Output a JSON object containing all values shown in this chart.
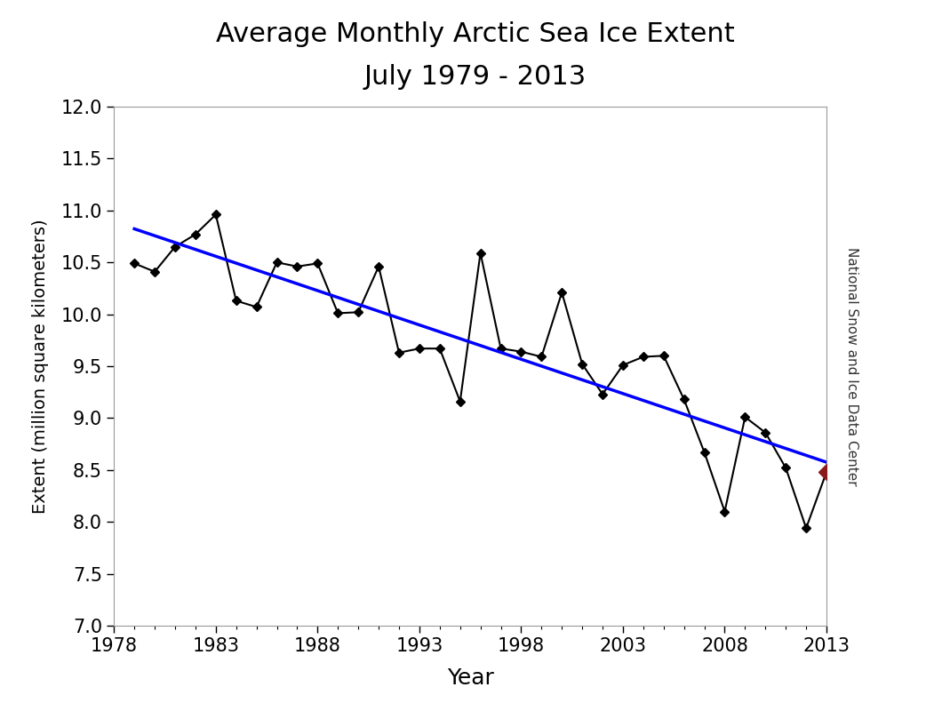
{
  "title_line1": "Average Monthly Arctic Sea Ice Extent",
  "title_line2": "July 1979 - 2013",
  "xlabel": "Year",
  "ylabel": "Extent (million square kilometers)",
  "right_label": "National Snow and Ice Data Center",
  "xlim": [
    1978,
    2013
  ],
  "ylim": [
    7.0,
    12.0
  ],
  "xticks": [
    1978,
    1983,
    1988,
    1993,
    1998,
    2003,
    2008,
    2013
  ],
  "yticks": [
    7.0,
    7.5,
    8.0,
    8.5,
    9.0,
    9.5,
    10.0,
    10.5,
    11.0,
    11.5,
    12.0
  ],
  "years": [
    1979,
    1980,
    1981,
    1982,
    1983,
    1984,
    1985,
    1986,
    1987,
    1988,
    1989,
    1990,
    1991,
    1992,
    1993,
    1994,
    1995,
    1996,
    1997,
    1998,
    1999,
    2000,
    2001,
    2002,
    2003,
    2004,
    2005,
    2006,
    2007,
    2008,
    2009,
    2010,
    2011,
    2012,
    2013
  ],
  "values": [
    10.49,
    10.41,
    10.65,
    10.77,
    10.96,
    10.13,
    10.07,
    10.5,
    10.46,
    10.49,
    10.01,
    10.02,
    10.46,
    9.63,
    9.67,
    9.67,
    9.16,
    10.59,
    9.67,
    9.64,
    9.59,
    10.21,
    9.52,
    9.23,
    9.51,
    9.59,
    9.6,
    9.18,
    8.67,
    8.1,
    9.01,
    8.86,
    8.52,
    7.94,
    8.48
  ],
  "line_color": "#000000",
  "marker": "D",
  "marker_size": 5,
  "trend_color": "#0000FF",
  "trend_linewidth": 2.5,
  "special_point_year": 2013,
  "special_point_value": 8.48,
  "special_marker_color": "#8B1A1A",
  "bg_color": "#ffffff",
  "plot_bg_color": "#ffffff"
}
